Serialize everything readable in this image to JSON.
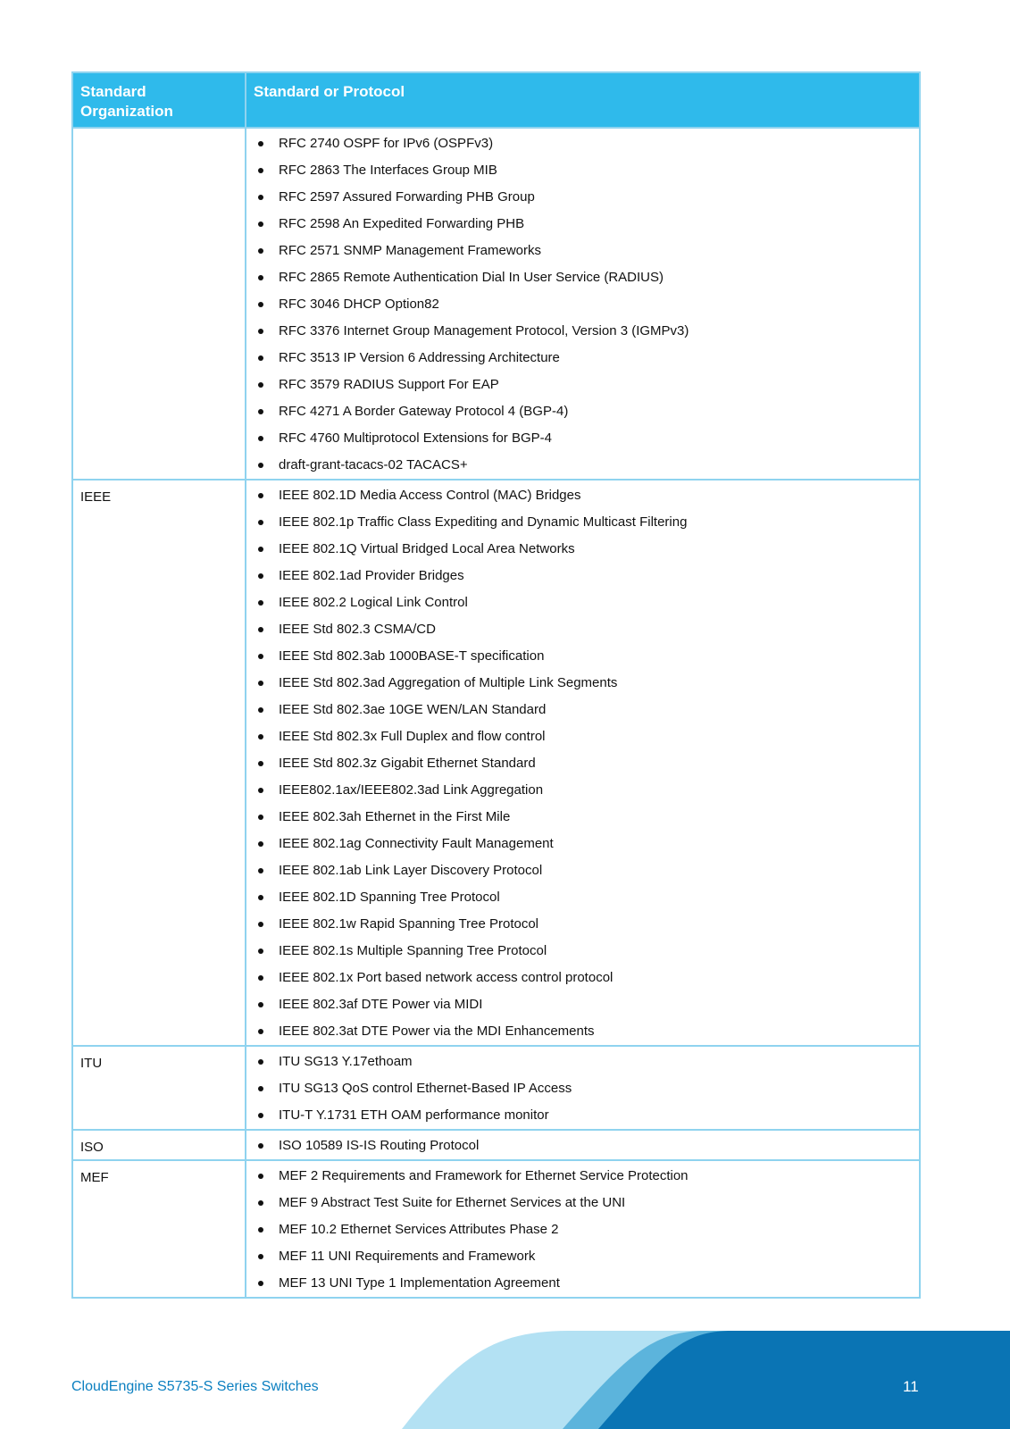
{
  "table": {
    "headers": [
      "Standard Organization",
      "Standard or Protocol"
    ],
    "rows": [
      {
        "org": "",
        "items": [
          "RFC 2740 OSPF for IPv6 (OSPFv3)",
          "RFC 2863 The Interfaces Group MIB",
          "RFC 2597 Assured Forwarding PHB Group",
          "RFC 2598 An Expedited Forwarding PHB",
          "RFC 2571 SNMP Management Frameworks",
          "RFC 2865 Remote Authentication Dial In User Service (RADIUS)",
          "RFC 3046 DHCP Option82",
          "RFC 3376 Internet Group Management Protocol, Version 3 (IGMPv3)",
          "RFC 3513 IP Version 6 Addressing Architecture",
          "RFC 3579 RADIUS Support For EAP",
          "RFC 4271 A Border Gateway Protocol 4 (BGP-4)",
          "RFC 4760 Multiprotocol Extensions for BGP-4",
          "draft-grant-tacacs-02 TACACS+"
        ]
      },
      {
        "org": "IEEE",
        "items": [
          "IEEE 802.1D Media Access Control (MAC) Bridges",
          "IEEE 802.1p Traffic Class Expediting and Dynamic Multicast Filtering",
          "IEEE 802.1Q Virtual Bridged Local Area Networks",
          "IEEE 802.1ad Provider Bridges",
          "IEEE 802.2 Logical Link Control",
          "IEEE Std 802.3 CSMA/CD",
          "IEEE Std 802.3ab 1000BASE-T specification",
          "IEEE Std 802.3ad Aggregation of Multiple Link Segments",
          "IEEE Std 802.3ae 10GE WEN/LAN Standard",
          "IEEE Std 802.3x Full Duplex and flow control",
          "IEEE Std 802.3z Gigabit Ethernet Standard",
          "IEEE802.1ax/IEEE802.3ad Link Aggregation",
          "IEEE 802.3ah Ethernet in the First Mile",
          "IEEE 802.1ag Connectivity Fault Management",
          "IEEE 802.1ab Link Layer Discovery Protocol",
          "IEEE 802.1D Spanning Tree Protocol",
          "IEEE 802.1w Rapid Spanning Tree Protocol",
          "IEEE 802.1s Multiple Spanning Tree Protocol",
          "IEEE 802.1x Port based network access control protocol",
          "IEEE 802.3af DTE Power via MIDI",
          "IEEE 802.3at DTE Power via the MDI Enhancements"
        ]
      },
      {
        "org": "ITU",
        "items": [
          "ITU SG13 Y.17ethoam",
          "ITU SG13 QoS control Ethernet-Based IP Access",
          "ITU-T Y.1731 ETH OAM performance monitor"
        ]
      },
      {
        "org": "ISO",
        "items": [
          "ISO 10589 IS-IS Routing Protocol"
        ]
      },
      {
        "org": "MEF",
        "items": [
          "MEF 2 Requirements and Framework for Ethernet Service Protection",
          "MEF 9 Abstract Test Suite for Ethernet Services at the UNI",
          "MEF 10.2 Ethernet Services Attributes Phase 2",
          "MEF 11 UNI Requirements and Framework",
          "MEF 13 UNI Type 1 Implementation Agreement"
        ]
      }
    ]
  },
  "footer": {
    "title": "CloudEngine S5735-S Series Switches",
    "page_number": "11"
  },
  "colors": {
    "header_bg": "#2fbaeb",
    "border": "#8fd3ef",
    "footer_dark": "#0a74b4",
    "footer_mid": "#5cb4dc",
    "footer_light": "#b3e1f3"
  }
}
